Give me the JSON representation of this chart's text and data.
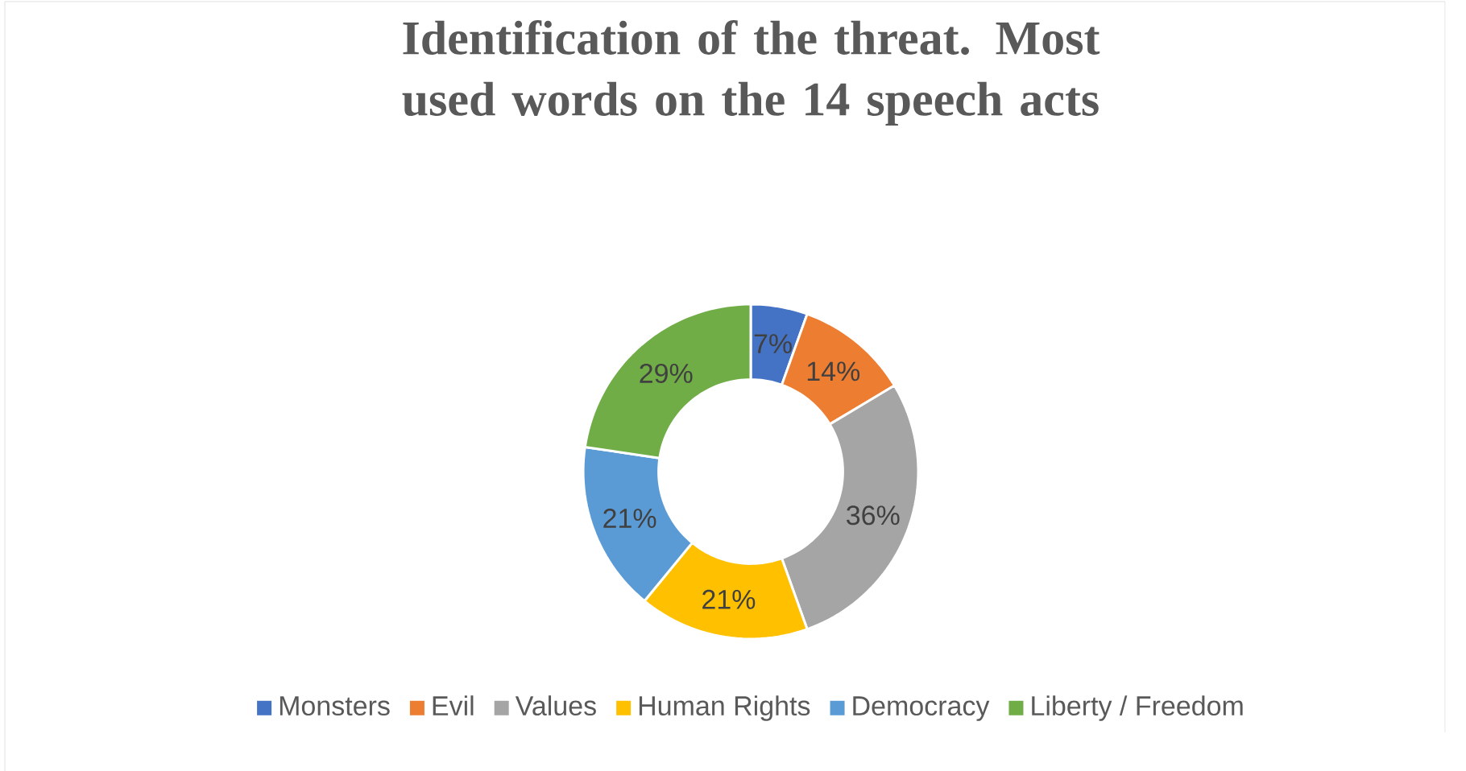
{
  "chart_data": {
    "type": "donut",
    "title": "Identification of the threat. Most used words on the 14 speech acts",
    "categories": [
      "Monsters",
      "Evil",
      "Values",
      "Human Rights",
      "Democracy",
      "Liberty / Freedom"
    ],
    "values": [
      7,
      14,
      36,
      21,
      21,
      29
    ],
    "colors": [
      "#4472c4",
      "#ed7d31",
      "#a5a5a5",
      "#ffc000",
      "#5b9bd5",
      "#70ad47"
    ],
    "value_labels": [
      "7%",
      "14%",
      "36%",
      "21%",
      "21%",
      "29%"
    ],
    "legend": "bottom"
  }
}
